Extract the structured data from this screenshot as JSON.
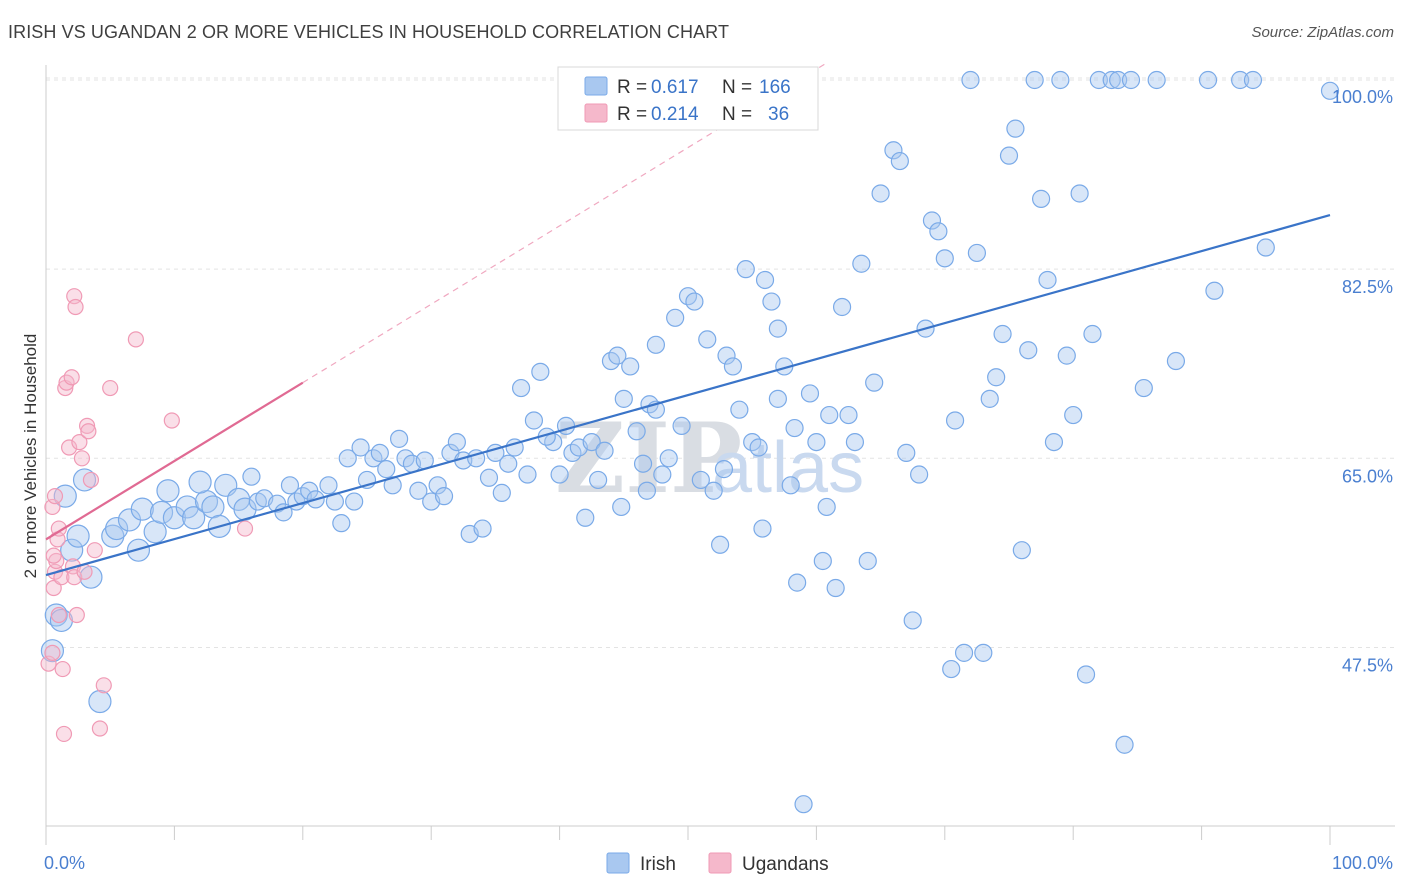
{
  "header": {
    "title": "IRISH VS UGANDAN 2 OR MORE VEHICLES IN HOUSEHOLD CORRELATION CHART",
    "source": "Source: ZipAtlas.com"
  },
  "legend_top": {
    "rows": [
      {
        "r_label": "R =",
        "r_value": "0.617",
        "n_label": "N =",
        "n_value": "166",
        "color": "#a9c8f0"
      },
      {
        "r_label": "R =",
        "r_value": "0.214",
        "n_label": "N =",
        "n_value": "36",
        "color": "#f5b8cb"
      }
    ]
  },
  "legend_bottom": {
    "items": [
      {
        "label": "Irish",
        "color": "#a9c8f0"
      },
      {
        "label": "Ugandans",
        "color": "#f5b8cb"
      }
    ]
  },
  "watermark": {
    "part1": "ZIP",
    "part2": "atlas"
  },
  "chart_data": {
    "type": "scatter",
    "title": "IRISH VS UGANDAN 2 OR MORE VEHICLES IN HOUSEHOLD CORRELATION CHART",
    "xlabel": "",
    "ylabel": "2 or more Vehicles in Household",
    "xlim": [
      0,
      100
    ],
    "ylim": [
      32,
      101.5
    ],
    "x_tick_labels": [
      "0.0%",
      "100.0%"
    ],
    "y_ticks": [
      47.5,
      65.0,
      82.5,
      100.0
    ],
    "y_tick_labels": [
      "47.5%",
      "65.0%",
      "82.5%",
      "100.0%"
    ],
    "grid": true,
    "legend_position": "top-center",
    "series": [
      {
        "name": "Irish",
        "color": "#7aaae8",
        "trend": {
          "x": [
            0,
            100
          ],
          "y": [
            54.2,
            87.5
          ],
          "color": "#3a74c8"
        },
        "points": [
          [
            0.5,
            47.2
          ],
          [
            0.8,
            50.5
          ],
          [
            1.2,
            50.0
          ],
          [
            2.0,
            56.5
          ],
          [
            2.5,
            57.8
          ],
          [
            3.5,
            54.0
          ],
          [
            4.2,
            42.5
          ],
          [
            5.2,
            57.8
          ],
          [
            5.5,
            58.5
          ],
          [
            6.5,
            59.3
          ],
          [
            7.5,
            60.3
          ],
          [
            7.2,
            56.5
          ],
          [
            8.5,
            58.2
          ],
          [
            9.0,
            60.0
          ],
          [
            10.0,
            59.5
          ],
          [
            11.0,
            60.5
          ],
          [
            11.5,
            59.5
          ],
          [
            12.5,
            61.0
          ],
          [
            13.0,
            60.5
          ],
          [
            13.5,
            58.7
          ],
          [
            14.0,
            62.5
          ],
          [
            15.0,
            61.2
          ],
          [
            15.5,
            60.3
          ],
          [
            16.5,
            61.0
          ],
          [
            17.0,
            61.3
          ],
          [
            18.0,
            60.8
          ],
          [
            19.0,
            62.5
          ],
          [
            19.5,
            61.0
          ],
          [
            20.0,
            61.5
          ],
          [
            20.5,
            62.0
          ],
          [
            21.0,
            61.2
          ],
          [
            22.0,
            62.5
          ],
          [
            22.5,
            61.0
          ],
          [
            23.0,
            59.0
          ],
          [
            23.5,
            65.0
          ],
          [
            24.0,
            61.0
          ],
          [
            25.0,
            63.0
          ],
          [
            25.5,
            65.0
          ],
          [
            26.0,
            65.5
          ],
          [
            27.0,
            62.5
          ],
          [
            27.5,
            66.8
          ],
          [
            28.0,
            65.0
          ],
          [
            28.5,
            64.5
          ],
          [
            29.0,
            62.0
          ],
          [
            29.5,
            64.8
          ],
          [
            30.0,
            61.0
          ],
          [
            30.5,
            62.5
          ],
          [
            31.0,
            61.5
          ],
          [
            31.5,
            65.5
          ],
          [
            32.0,
            66.5
          ],
          [
            32.5,
            64.8
          ],
          [
            33.0,
            58.0
          ],
          [
            33.5,
            65.0
          ],
          [
            34.0,
            58.5
          ],
          [
            35.0,
            65.5
          ],
          [
            35.5,
            61.8
          ],
          [
            36.0,
            64.5
          ],
          [
            36.5,
            66.0
          ],
          [
            37.5,
            63.5
          ],
          [
            37.0,
            71.5
          ],
          [
            38.0,
            68.5
          ],
          [
            38.5,
            73.0
          ],
          [
            39.5,
            66.5
          ],
          [
            40.0,
            63.5
          ],
          [
            40.5,
            68.0
          ],
          [
            41.0,
            65.5
          ],
          [
            41.5,
            66.0
          ],
          [
            42.0,
            59.5
          ],
          [
            42.5,
            66.5
          ],
          [
            43.0,
            63.0
          ],
          [
            44.0,
            74.0
          ],
          [
            44.5,
            74.5
          ],
          [
            45.0,
            70.5
          ],
          [
            45.5,
            73.5
          ],
          [
            46.0,
            67.5
          ],
          [
            46.5,
            64.5
          ],
          [
            47.0,
            70.0
          ],
          [
            47.5,
            69.5
          ],
          [
            48.0,
            63.5
          ],
          [
            48.5,
            65.0
          ],
          [
            47.5,
            75.5
          ],
          [
            49.0,
            78.0
          ],
          [
            50.0,
            80.0
          ],
          [
            50.5,
            79.5
          ],
          [
            51.5,
            76.0
          ],
          [
            51.0,
            63.0
          ],
          [
            52.0,
            62.0
          ],
          [
            52.5,
            57.0
          ],
          [
            53.0,
            74.5
          ],
          [
            53.5,
            73.5
          ],
          [
            54.0,
            69.5
          ],
          [
            54.5,
            82.5
          ],
          [
            55.0,
            66.5
          ],
          [
            55.5,
            66.0
          ],
          [
            56.0,
            81.5
          ],
          [
            56.5,
            79.5
          ],
          [
            57.0,
            70.5
          ],
          [
            57.5,
            73.5
          ],
          [
            58.0,
            62.5
          ],
          [
            58.5,
            53.5
          ],
          [
            57.0,
            77.0
          ],
          [
            59.0,
            33.0
          ],
          [
            59.5,
            71.0
          ],
          [
            60.0,
            66.5
          ],
          [
            60.5,
            55.5
          ],
          [
            61.0,
            69.0
          ],
          [
            61.5,
            53.0
          ],
          [
            62.0,
            79.0
          ],
          [
            62.5,
            69.0
          ],
          [
            63.0,
            66.5
          ],
          [
            63.5,
            83.0
          ],
          [
            64.0,
            55.5
          ],
          [
            65.0,
            89.5
          ],
          [
            66.0,
            93.5
          ],
          [
            66.5,
            92.5
          ],
          [
            67.5,
            50.0
          ],
          [
            68.0,
            63.5
          ],
          [
            68.5,
            77.0
          ],
          [
            69.0,
            87.0
          ],
          [
            69.5,
            86.0
          ],
          [
            70.0,
            83.5
          ],
          [
            70.5,
            45.5
          ],
          [
            71.5,
            47.0
          ],
          [
            72.0,
            100.0
          ],
          [
            72.5,
            84.0
          ],
          [
            73.0,
            47.0
          ],
          [
            74.0,
            72.5
          ],
          [
            74.5,
            76.5
          ],
          [
            75.0,
            93.0
          ],
          [
            75.5,
            95.5
          ],
          [
            76.0,
            56.5
          ],
          [
            76.5,
            75.0
          ],
          [
            77.0,
            100.0
          ],
          [
            77.5,
            89.0
          ],
          [
            78.0,
            81.5
          ],
          [
            79.0,
            100.0
          ],
          [
            79.5,
            74.5
          ],
          [
            80.5,
            89.5
          ],
          [
            81.0,
            45.0
          ],
          [
            81.5,
            76.5
          ],
          [
            82.0,
            100.0
          ],
          [
            83.0,
            100.0
          ],
          [
            83.5,
            100.0
          ],
          [
            84.0,
            38.5
          ],
          [
            84.5,
            100.0
          ],
          [
            86.5,
            100.0
          ],
          [
            90.5,
            100.0
          ],
          [
            93.0,
            100.0
          ],
          [
            94.0,
            100.0
          ],
          [
            100.0,
            99.0
          ],
          [
            1.5,
            61.5
          ],
          [
            3.0,
            63.0
          ],
          [
            9.5,
            62.0
          ],
          [
            12.0,
            62.8
          ],
          [
            16.0,
            63.3
          ],
          [
            18.5,
            60.0
          ],
          [
            24.5,
            66.0
          ],
          [
            26.5,
            64.0
          ],
          [
            34.5,
            63.2
          ],
          [
            39.0,
            67.0
          ],
          [
            43.5,
            65.7
          ],
          [
            44.8,
            60.5
          ],
          [
            46.8,
            62.0
          ],
          [
            49.5,
            68.0
          ],
          [
            52.8,
            64.0
          ],
          [
            55.8,
            58.5
          ],
          [
            58.3,
            67.8
          ],
          [
            60.8,
            60.5
          ],
          [
            64.5,
            72.0
          ],
          [
            67.0,
            65.5
          ],
          [
            70.8,
            68.5
          ],
          [
            73.5,
            70.5
          ],
          [
            78.5,
            66.5
          ],
          [
            80.0,
            69.0
          ],
          [
            85.5,
            71.5
          ],
          [
            88.0,
            74.0
          ],
          [
            91.0,
            80.5
          ],
          [
            95.0,
            84.5
          ]
        ]
      },
      {
        "name": "Ugandans",
        "color": "#f09ab5",
        "trend": {
          "x": [
            0,
            20
          ],
          "y": [
            57.5,
            72.0
          ],
          "color": "#e06a93"
        },
        "trend_extension": {
          "x": [
            20,
            100
          ],
          "y": [
            72.0,
            130.0
          ]
        },
        "points": [
          [
            0.2,
            46.0
          ],
          [
            0.5,
            47.0
          ],
          [
            0.6,
            53.0
          ],
          [
            0.7,
            54.5
          ],
          [
            0.8,
            55.5
          ],
          [
            0.6,
            56.0
          ],
          [
            0.9,
            57.5
          ],
          [
            1.0,
            58.5
          ],
          [
            0.5,
            60.5
          ],
          [
            0.7,
            61.5
          ],
          [
            1.0,
            50.5
          ],
          [
            1.2,
            54.0
          ],
          [
            1.3,
            45.5
          ],
          [
            1.4,
            39.5
          ],
          [
            1.5,
            71.5
          ],
          [
            1.6,
            72.0
          ],
          [
            1.8,
            66.0
          ],
          [
            2.0,
            72.5
          ],
          [
            2.1,
            55.0
          ],
          [
            2.2,
            54.0
          ],
          [
            2.2,
            80.0
          ],
          [
            2.3,
            79.0
          ],
          [
            2.4,
            50.5
          ],
          [
            2.6,
            66.5
          ],
          [
            2.8,
            65.0
          ],
          [
            3.0,
            54.5
          ],
          [
            3.2,
            68.0
          ],
          [
            3.3,
            67.5
          ],
          [
            3.5,
            63.0
          ],
          [
            3.8,
            56.5
          ],
          [
            4.2,
            40.0
          ],
          [
            4.5,
            44.0
          ],
          [
            5.0,
            71.5
          ],
          [
            7.0,
            76.0
          ],
          [
            9.8,
            68.5
          ],
          [
            15.5,
            58.5
          ]
        ]
      }
    ]
  }
}
